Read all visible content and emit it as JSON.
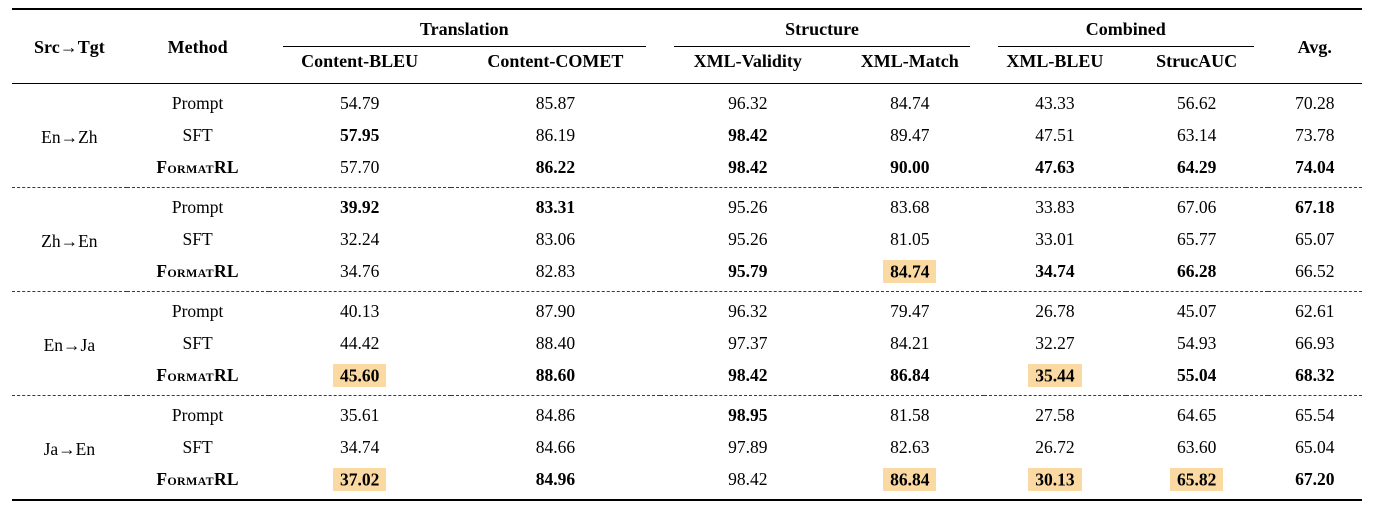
{
  "colors": {
    "highlight": "#fbd9a3",
    "rule": "#000000",
    "dashed_separator": "#3a3a3a"
  },
  "table": {
    "header": {
      "src_tgt": "Src→Tgt",
      "method": "Method",
      "avg": "Avg.",
      "groups": [
        {
          "label": "Translation",
          "cols": [
            "Content-BLEU",
            "Content-COMET"
          ]
        },
        {
          "label": "Structure",
          "cols": [
            "XML-Validity",
            "XML-Match"
          ]
        },
        {
          "label": "Combined",
          "cols": [
            "XML-BLEU",
            "StrucAUC"
          ]
        }
      ]
    },
    "groups": [
      {
        "pair": "En→Zh",
        "rows": [
          {
            "method": "Prompt",
            "sc": false,
            "values": [
              "54.79",
              "85.87",
              "96.32",
              "84.74",
              "43.33",
              "56.62",
              "70.28"
            ],
            "bold": [
              0,
              0,
              0,
              0,
              0,
              0,
              0
            ],
            "highlight": [
              0,
              0,
              0,
              0,
              0,
              0,
              0
            ]
          },
          {
            "method": "SFT",
            "sc": false,
            "values": [
              "57.95",
              "86.19",
              "98.42",
              "89.47",
              "47.51",
              "63.14",
              "73.78"
            ],
            "bold": [
              1,
              0,
              1,
              0,
              0,
              0,
              0
            ],
            "highlight": [
              0,
              0,
              0,
              0,
              0,
              0,
              0
            ]
          },
          {
            "method": "FormatRL",
            "sc": true,
            "values": [
              "57.70",
              "86.22",
              "98.42",
              "90.00",
              "47.63",
              "64.29",
              "74.04"
            ],
            "bold": [
              0,
              1,
              1,
              1,
              1,
              1,
              1
            ],
            "highlight": [
              0,
              0,
              0,
              0,
              0,
              0,
              0
            ]
          }
        ]
      },
      {
        "pair": "Zh→En",
        "rows": [
          {
            "method": "Prompt",
            "sc": false,
            "values": [
              "39.92",
              "83.31",
              "95.26",
              "83.68",
              "33.83",
              "67.06",
              "67.18"
            ],
            "bold": [
              1,
              1,
              0,
              0,
              0,
              0,
              1
            ],
            "highlight": [
              0,
              0,
              0,
              0,
              0,
              0,
              0
            ]
          },
          {
            "method": "SFT",
            "sc": false,
            "values": [
              "32.24",
              "83.06",
              "95.26",
              "81.05",
              "33.01",
              "65.77",
              "65.07"
            ],
            "bold": [
              0,
              0,
              0,
              0,
              0,
              0,
              0
            ],
            "highlight": [
              0,
              0,
              0,
              0,
              0,
              0,
              0
            ]
          },
          {
            "method": "FormatRL",
            "sc": true,
            "values": [
              "34.76",
              "82.83",
              "95.79",
              "84.74",
              "34.74",
              "66.28",
              "66.52"
            ],
            "bold": [
              0,
              0,
              1,
              1,
              1,
              1,
              0
            ],
            "highlight": [
              0,
              0,
              0,
              1,
              0,
              0,
              0
            ]
          }
        ]
      },
      {
        "pair": "En→Ja",
        "rows": [
          {
            "method": "Prompt",
            "sc": false,
            "values": [
              "40.13",
              "87.90",
              "96.32",
              "79.47",
              "26.78",
              "45.07",
              "62.61"
            ],
            "bold": [
              0,
              0,
              0,
              0,
              0,
              0,
              0
            ],
            "highlight": [
              0,
              0,
              0,
              0,
              0,
              0,
              0
            ]
          },
          {
            "method": "SFT",
            "sc": false,
            "values": [
              "44.42",
              "88.40",
              "97.37",
              "84.21",
              "32.27",
              "54.93",
              "66.93"
            ],
            "bold": [
              0,
              0,
              0,
              0,
              0,
              0,
              0
            ],
            "highlight": [
              0,
              0,
              0,
              0,
              0,
              0,
              0
            ]
          },
          {
            "method": "FormatRL",
            "sc": true,
            "values": [
              "45.60",
              "88.60",
              "98.42",
              "86.84",
              "35.44",
              "55.04",
              "68.32"
            ],
            "bold": [
              1,
              1,
              1,
              1,
              1,
              1,
              1
            ],
            "highlight": [
              1,
              0,
              0,
              0,
              1,
              0,
              0
            ]
          }
        ]
      },
      {
        "pair": "Ja→En",
        "rows": [
          {
            "method": "Prompt",
            "sc": false,
            "values": [
              "35.61",
              "84.86",
              "98.95",
              "81.58",
              "27.58",
              "64.65",
              "65.54"
            ],
            "bold": [
              0,
              0,
              1,
              0,
              0,
              0,
              0
            ],
            "highlight": [
              0,
              0,
              0,
              0,
              0,
              0,
              0
            ]
          },
          {
            "method": "SFT",
            "sc": false,
            "values": [
              "34.74",
              "84.66",
              "97.89",
              "82.63",
              "26.72",
              "63.60",
              "65.04"
            ],
            "bold": [
              0,
              0,
              0,
              0,
              0,
              0,
              0
            ],
            "highlight": [
              0,
              0,
              0,
              0,
              0,
              0,
              0
            ]
          },
          {
            "method": "FormatRL",
            "sc": true,
            "values": [
              "37.02",
              "84.96",
              "98.42",
              "86.84",
              "30.13",
              "65.82",
              "67.20"
            ],
            "bold": [
              1,
              1,
              0,
              1,
              1,
              1,
              1
            ],
            "highlight": [
              1,
              0,
              0,
              1,
              1,
              1,
              0
            ]
          }
        ]
      }
    ]
  }
}
